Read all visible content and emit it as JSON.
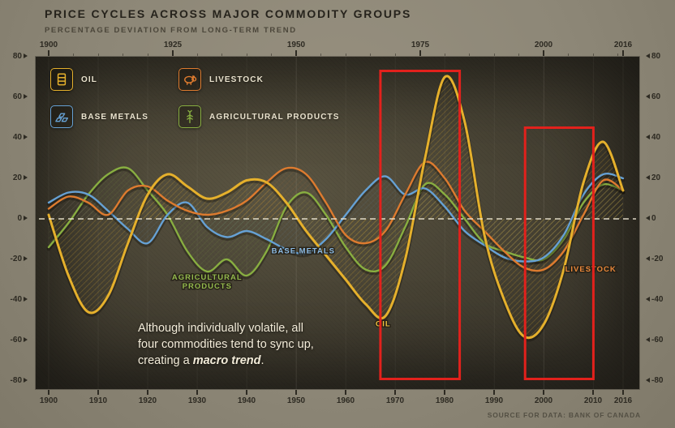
{
  "title": "PRICE CYCLES ACROSS MAJOR COMMODITY GROUPS",
  "subtitle": "PERCENTAGE DEVIATION FROM LONG-TERM TREND",
  "source": "SOURCE FOR DATA: BANK OF CANADA",
  "annotation": {
    "line1": "Although individually volatile, all",
    "line2": "four commodities tend to sync up,",
    "line3_prefix": "creating a ",
    "line3_emphasis": "macro trend",
    "line3_suffix": "."
  },
  "colors": {
    "oil": "#e5b02c",
    "livestock": "#dd7b2f",
    "base_metals": "#66a1d4",
    "agriculture": "#88ae41",
    "highlight": "#e2211c",
    "zero_line": "#f0e9d4",
    "axis_text": "#2d2a22"
  },
  "legend": [
    {
      "id": "oil",
      "label": "OIL",
      "icon": "oil-barrel-icon",
      "color": "#e5b02c"
    },
    {
      "id": "livestock",
      "label": "LIVESTOCK",
      "icon": "livestock-icon",
      "color": "#dd7b2f"
    },
    {
      "id": "base-metals",
      "label": "BASE METALS",
      "icon": "base-metals-icon",
      "color": "#66a1d4"
    },
    {
      "id": "agriculture",
      "label": "AGRICULTURAL PRODUCTS",
      "icon": "agriculture-icon",
      "color": "#88ae41"
    }
  ],
  "axes": {
    "top_ticks": [
      "1900",
      "1925",
      "1950",
      "1975",
      "2000",
      "2016"
    ],
    "bottom_ticks": [
      "1900",
      "1910",
      "1920",
      "1930",
      "1940",
      "1950",
      "1960",
      "1970",
      "1980",
      "1990",
      "2000",
      "2010",
      "2016"
    ],
    "y_ticks": [
      "80",
      "60",
      "40",
      "20",
      "0",
      "-20",
      "-40",
      "-60",
      "-80"
    ]
  },
  "chart_data": {
    "type": "line",
    "title": "Price cycles across major commodity groups",
    "ylabel": "% deviation from long-term trend",
    "xlim": [
      1900,
      2016
    ],
    "ylim": [
      -80,
      80
    ],
    "grid": true,
    "legend_position": "top-left",
    "x": [
      1900,
      1904,
      1908,
      1912,
      1916,
      1920,
      1924,
      1928,
      1932,
      1936,
      1940,
      1944,
      1948,
      1952,
      1956,
      1960,
      1964,
      1968,
      1972,
      1976,
      1980,
      1984,
      1988,
      1992,
      1996,
      2000,
      2004,
      2008,
      2012,
      2016
    ],
    "series": [
      {
        "id": "oil",
        "name": "Oil",
        "color": "#e5b02c",
        "values": [
          2,
          -28,
          -46,
          -38,
          -12,
          12,
          22,
          16,
          10,
          13,
          19,
          18,
          8,
          -6,
          -18,
          -30,
          -42,
          -48,
          -20,
          30,
          70,
          48,
          -8,
          -40,
          -58,
          -52,
          -25,
          18,
          38,
          14
        ]
      },
      {
        "id": "livestock",
        "name": "Livestock",
        "color": "#dd7b2f",
        "values": [
          5,
          11,
          8,
          2,
          14,
          16,
          9,
          4,
          2,
          4,
          9,
          18,
          25,
          22,
          8,
          -8,
          -12,
          -6,
          12,
          28,
          20,
          4,
          -6,
          -16,
          -24,
          -25,
          -16,
          2,
          19,
          14
        ]
      },
      {
        "id": "base-metals",
        "name": "Base Metals",
        "color": "#66a1d4",
        "values": [
          8,
          13,
          12,
          4,
          -5,
          -12,
          2,
          8,
          -4,
          -9,
          -6,
          -10,
          -15,
          -17,
          -10,
          2,
          14,
          21,
          12,
          15,
          6,
          -6,
          -13,
          -19,
          -21,
          -19,
          -8,
          12,
          22,
          20
        ]
      },
      {
        "id": "agriculture",
        "name": "Agricultural Products",
        "color": "#88ae41",
        "values": [
          -14,
          -2,
          12,
          22,
          25,
          14,
          2,
          -16,
          -26,
          -20,
          -28,
          -16,
          6,
          13,
          2,
          -14,
          -25,
          -23,
          -4,
          17,
          12,
          0,
          -12,
          -16,
          -19,
          -20,
          -10,
          8,
          17,
          14
        ]
      }
    ],
    "annotations": [
      {
        "id": "base-metals",
        "lines": [
          "BASE METALS"
        ],
        "color": "#8cbbe4",
        "year": 1945,
        "value": -17,
        "anchor": "start"
      },
      {
        "id": "agriculture",
        "lines": [
          "AGRICULTURAL",
          "PRODUCTS"
        ],
        "color": "#93b94d",
        "year": 1932,
        "value": -30,
        "anchor": "middle"
      },
      {
        "id": "oil",
        "lines": [
          "OIL"
        ],
        "color": "#eec23f",
        "year": 1966,
        "value": -53,
        "anchor": "start"
      },
      {
        "id": "livestock",
        "lines": [
          "LIVESTOCK"
        ],
        "color": "#e8873a",
        "year": 2004.3,
        "value": -26,
        "anchor": "start"
      }
    ],
    "highlight_regions": [
      {
        "x0": 1967,
        "x1": 1983,
        "y0": -79,
        "y1": 73
      },
      {
        "x0": 1996.2,
        "x1": 2010,
        "y0": -79,
        "y1": 45
      }
    ]
  }
}
